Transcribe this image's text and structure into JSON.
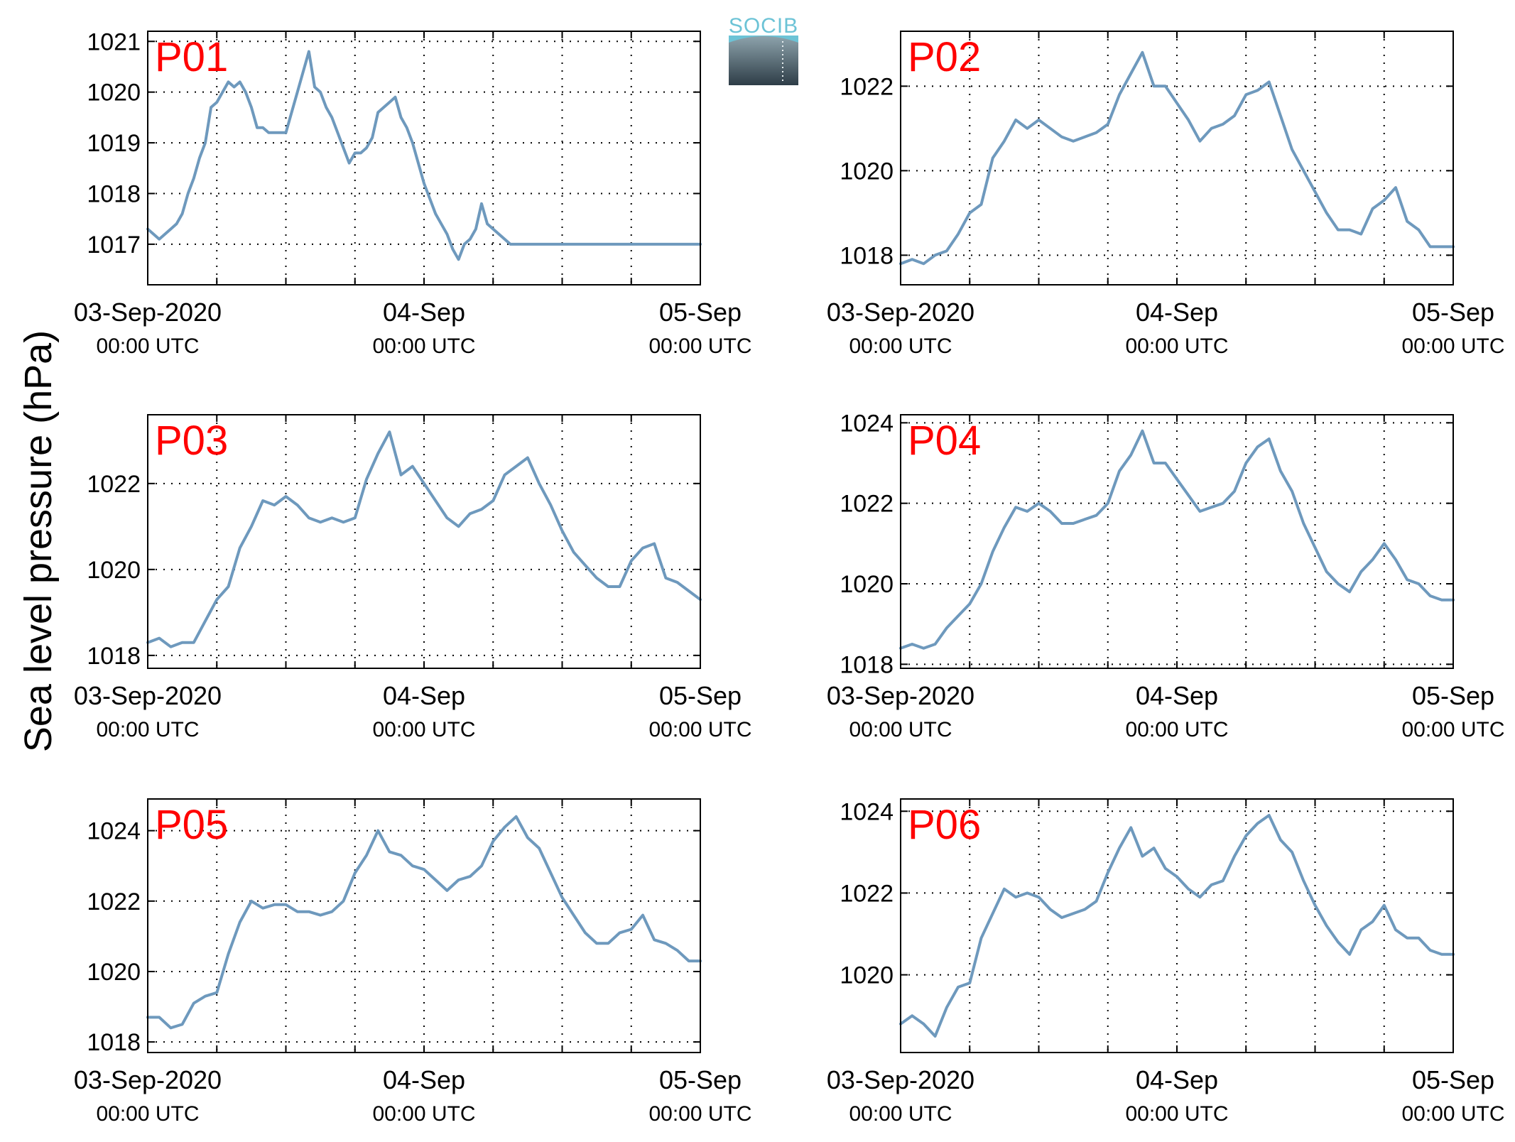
{
  "figure": {
    "ylabel": "Sea level pressure (hPa)",
    "logo_text": "SOCIB",
    "colors": {
      "line": "#6e99bd",
      "panel_label": "#ff0000",
      "frame": "#000000"
    }
  },
  "chart_data": [
    {
      "type": "line",
      "label": "P01",
      "grid": true,
      "ylim": [
        1016.2,
        1021.2
      ],
      "yticks": [
        1017,
        1018,
        1019,
        1020,
        1021
      ],
      "xlim": [
        0,
        48
      ],
      "xtick_labels": [
        {
          "x": 0,
          "date": "03-Sep-2020",
          "time": "00:00 UTC"
        },
        {
          "x": 24,
          "date": "04-Sep",
          "time": "00:00 UTC"
        },
        {
          "x": 48,
          "date": "05-Sep",
          "time": "00:00 UTC"
        }
      ],
      "x": [
        0,
        0.5,
        1,
        1.5,
        2,
        2.5,
        3,
        3.5,
        4,
        4.5,
        5,
        5.5,
        6,
        6.5,
        7,
        7.5,
        8,
        8.5,
        9,
        9.5,
        10,
        10.5,
        11,
        11.5,
        12,
        12.5,
        13,
        13.5,
        14,
        14.5,
        15,
        15.5,
        16,
        16.5,
        17,
        17.5,
        18,
        18.5,
        19,
        19.5,
        20,
        20.5,
        21,
        21.5,
        22,
        22.5,
        23,
        23.5,
        24,
        24.5,
        25,
        25.5,
        26,
        26.5,
        27,
        27.5,
        28,
        28.5,
        29,
        29.5,
        30,
        30.5,
        31,
        31.5,
        32,
        32.5,
        33,
        33.5,
        34,
        34.5,
        35,
        35.5,
        36,
        36.5,
        37,
        37.5,
        38,
        38.5,
        39,
        39.5,
        40,
        40.5,
        41,
        41.5,
        42,
        42.5,
        43,
        43.5,
        44,
        44.5,
        45,
        45.5,
        46,
        46.5,
        47,
        47.5,
        48
      ],
      "y": [
        1017.3,
        1017.2,
        1017.1,
        1017.2,
        1017.3,
        1017.4,
        1017.6,
        1018,
        1018.3,
        1018.7,
        1019,
        1019.7,
        1019.8,
        1020,
        1020.2,
        1020.1,
        1020.2,
        1020,
        1019.7,
        1019.3,
        1019.3,
        1019.2,
        1019.2,
        1019.2,
        1019.2,
        1019.6,
        1020,
        1020.4,
        1020.8,
        1020.1,
        1020,
        1019.7,
        1019.5,
        1019.2,
        1018.9,
        1018.6,
        1018.8,
        1018.8,
        1018.9,
        1019.1,
        1019.6,
        1019.7,
        1019.8,
        1019.9,
        1019.5,
        1019.3,
        1019,
        1018.6,
        1018.2,
        1017.9,
        1017.6,
        1017.4,
        1017.2,
        1016.9,
        1016.7,
        1017,
        1017.1,
        1017.3,
        1017.8,
        1017.4,
        1017.3,
        1017.2,
        1017.1,
        1017.0,
        1017.0,
        1017.0,
        1017.0,
        1017.0,
        1017.0,
        1017.0,
        1017.0,
        1017.0,
        1017.0,
        1017.0,
        1017.0,
        1017.0,
        1017.0,
        1017.0,
        1017.0,
        1017.0,
        1017.0,
        1017.0,
        1017.0,
        1017.0,
        1017.0,
        1017.0,
        1017.0,
        1017.0,
        1017.0,
        1017.0,
        1017.0,
        1017.0,
        1017.0,
        1017.0,
        1017.0,
        1017.0,
        1017.0
      ]
    },
    {
      "type": "line",
      "label": "P02",
      "grid": true,
      "ylim": [
        1017.3,
        1023.3
      ],
      "yticks": [
        1018,
        1020,
        1022
      ],
      "xlim": [
        0,
        48
      ],
      "xtick_labels": [
        {
          "x": 0,
          "date": "03-Sep-2020",
          "time": "00:00 UTC"
        },
        {
          "x": 24,
          "date": "04-Sep",
          "time": "00:00 UTC"
        },
        {
          "x": 48,
          "date": "05-Sep",
          "time": "00:00 UTC"
        }
      ],
      "x": [
        0,
        1,
        2,
        3,
        4,
        5,
        6,
        7,
        8,
        9,
        10,
        11,
        12,
        13,
        14,
        15,
        16,
        17,
        18,
        19,
        20,
        21,
        22,
        23,
        24,
        25,
        26,
        27,
        28,
        29,
        30,
        31,
        32,
        33,
        34,
        35,
        36,
        37,
        38,
        39,
        40,
        41,
        42,
        43,
        44,
        45,
        46,
        47,
        48
      ],
      "y": [
        1017.8,
        1017.9,
        1017.8,
        1018,
        1018.1,
        1018.5,
        1019,
        1019.2,
        1020.3,
        1020.7,
        1021.2,
        1021,
        1021.2,
        1021,
        1020.8,
        1020.7,
        1020.8,
        1020.9,
        1021.1,
        1021.8,
        1022.3,
        1022.8,
        1022,
        1022,
        1021.6,
        1021.2,
        1020.7,
        1021,
        1021.1,
        1021.3,
        1021.8,
        1021.9,
        1022.1,
        1021.3,
        1020.5,
        1020,
        1019.5,
        1019,
        1018.6,
        1018.6,
        1018.5,
        1019.1,
        1019.3,
        1019.6,
        1018.8,
        1018.6,
        1018.2,
        1018.2,
        1018.2
      ]
    },
    {
      "type": "line",
      "label": "P03",
      "grid": true,
      "ylim": [
        1017.7,
        1023.6
      ],
      "yticks": [
        1018,
        1020,
        1022
      ],
      "xlim": [
        0,
        48
      ],
      "xtick_labels": [
        {
          "x": 0,
          "date": "03-Sep-2020",
          "time": "00:00 UTC"
        },
        {
          "x": 24,
          "date": "04-Sep",
          "time": "00:00 UTC"
        },
        {
          "x": 48,
          "date": "05-Sep",
          "time": "00:00 UTC"
        }
      ],
      "x": [
        0,
        1,
        2,
        3,
        4,
        5,
        6,
        7,
        8,
        9,
        10,
        11,
        12,
        13,
        14,
        15,
        16,
        17,
        18,
        19,
        20,
        21,
        22,
        23,
        24,
        25,
        26,
        27,
        28,
        29,
        30,
        31,
        32,
        33,
        34,
        35,
        36,
        37,
        38,
        39,
        40,
        41,
        42,
        43,
        44,
        45,
        46,
        47,
        48
      ],
      "y": [
        1018.3,
        1018.4,
        1018.2,
        1018.3,
        1018.3,
        1018.8,
        1019.3,
        1019.6,
        1020.5,
        1021,
        1021.6,
        1021.5,
        1021.7,
        1021.5,
        1021.2,
        1021.1,
        1021.2,
        1021.1,
        1021.2,
        1022.1,
        1022.7,
        1023.2,
        1022.2,
        1022.4,
        1022,
        1021.6,
        1021.2,
        1021,
        1021.3,
        1021.4,
        1021.6,
        1022.2,
        1022.4,
        1022.6,
        1022,
        1021.5,
        1020.9,
        1020.4,
        1020.1,
        1019.8,
        1019.6,
        1019.6,
        1020.2,
        1020.5,
        1020.6,
        1019.8,
        1019.7,
        1019.5,
        1019.3
      ]
    },
    {
      "type": "line",
      "label": "P04",
      "grid": true,
      "ylim": [
        1017.9,
        1024.2
      ],
      "yticks": [
        1018,
        1020,
        1022,
        1024
      ],
      "xlim": [
        0,
        48
      ],
      "xtick_labels": [
        {
          "x": 0,
          "date": "03-Sep-2020",
          "time": "00:00 UTC"
        },
        {
          "x": 24,
          "date": "04-Sep",
          "time": "00:00 UTC"
        },
        {
          "x": 48,
          "date": "05-Sep",
          "time": "00:00 UTC"
        }
      ],
      "x": [
        0,
        1,
        2,
        3,
        4,
        5,
        6,
        7,
        8,
        9,
        10,
        11,
        12,
        13,
        14,
        15,
        16,
        17,
        18,
        19,
        20,
        21,
        22,
        23,
        24,
        25,
        26,
        27,
        28,
        29,
        30,
        31,
        32,
        33,
        34,
        35,
        36,
        37,
        38,
        39,
        40,
        41,
        42,
        43,
        44,
        45,
        46,
        47,
        48
      ],
      "y": [
        1018.4,
        1018.5,
        1018.4,
        1018.5,
        1018.9,
        1019.2,
        1019.5,
        1020,
        1020.8,
        1021.4,
        1021.9,
        1021.8,
        1022,
        1021.8,
        1021.5,
        1021.5,
        1021.6,
        1021.7,
        1022,
        1022.8,
        1023.2,
        1023.8,
        1023,
        1023,
        1022.6,
        1022.2,
        1021.8,
        1021.9,
        1022,
        1022.3,
        1023,
        1023.4,
        1023.6,
        1022.8,
        1022.3,
        1021.5,
        1020.9,
        1020.3,
        1020,
        1019.8,
        1020.3,
        1020.6,
        1021,
        1020.6,
        1020.1,
        1020,
        1019.7,
        1019.6,
        1019.6
      ]
    },
    {
      "type": "line",
      "label": "P05",
      "grid": true,
      "ylim": [
        1017.7,
        1024.9
      ],
      "yticks": [
        1018,
        1020,
        1022,
        1024
      ],
      "xlim": [
        0,
        48
      ],
      "xtick_labels": [
        {
          "x": 0,
          "date": "03-Sep-2020",
          "time": "00:00 UTC"
        },
        {
          "x": 24,
          "date": "04-Sep",
          "time": "00:00 UTC"
        },
        {
          "x": 48,
          "date": "05-Sep",
          "time": "00:00 UTC"
        }
      ],
      "x": [
        0,
        1,
        2,
        3,
        4,
        5,
        6,
        7,
        8,
        9,
        10,
        11,
        12,
        13,
        14,
        15,
        16,
        17,
        18,
        19,
        20,
        21,
        22,
        23,
        24,
        25,
        26,
        27,
        28,
        29,
        30,
        31,
        32,
        33,
        34,
        35,
        36,
        37,
        38,
        39,
        40,
        41,
        42,
        43,
        44,
        45,
        46,
        47,
        48
      ],
      "y": [
        1018.7,
        1018.7,
        1018.4,
        1018.5,
        1019.1,
        1019.3,
        1019.4,
        1020.5,
        1021.4,
        1022,
        1021.8,
        1021.9,
        1021.9,
        1021.7,
        1021.7,
        1021.6,
        1021.7,
        1022,
        1022.8,
        1023.3,
        1024,
        1023.4,
        1023.3,
        1023,
        1022.9,
        1022.6,
        1022.3,
        1022.6,
        1022.7,
        1023,
        1023.7,
        1024.1,
        1024.4,
        1023.8,
        1023.5,
        1022.8,
        1022.1,
        1021.6,
        1021.1,
        1020.8,
        1020.8,
        1021.1,
        1021.2,
        1021.6,
        1020.9,
        1020.8,
        1020.6,
        1020.3,
        1020.3
      ]
    },
    {
      "type": "line",
      "label": "P06",
      "grid": true,
      "ylim": [
        1018.1,
        1024.3
      ],
      "yticks": [
        1020,
        1022,
        1024
      ],
      "xlim": [
        0,
        48
      ],
      "xtick_labels": [
        {
          "x": 0,
          "date": "03-Sep-2020",
          "time": "00:00 UTC"
        },
        {
          "x": 24,
          "date": "04-Sep",
          "time": "00:00 UTC"
        },
        {
          "x": 48,
          "date": "05-Sep",
          "time": "00:00 UTC"
        }
      ],
      "x": [
        0,
        1,
        2,
        3,
        4,
        5,
        6,
        7,
        8,
        9,
        10,
        11,
        12,
        13,
        14,
        15,
        16,
        17,
        18,
        19,
        20,
        21,
        22,
        23,
        24,
        25,
        26,
        27,
        28,
        29,
        30,
        31,
        32,
        33,
        34,
        35,
        36,
        37,
        38,
        39,
        40,
        41,
        42,
        43,
        44,
        45,
        46,
        47,
        48
      ],
      "y": [
        1018.8,
        1019,
        1018.8,
        1018.5,
        1019.2,
        1019.7,
        1019.8,
        1020.9,
        1021.5,
        1022.1,
        1021.9,
        1022,
        1021.9,
        1021.6,
        1021.4,
        1021.5,
        1021.6,
        1021.8,
        1022.5,
        1023.1,
        1023.6,
        1022.9,
        1023.1,
        1022.6,
        1022.4,
        1022.1,
        1021.9,
        1022.2,
        1022.3,
        1022.9,
        1023.4,
        1023.7,
        1023.9,
        1023.3,
        1023,
        1022.3,
        1021.7,
        1021.2,
        1020.8,
        1020.5,
        1021.1,
        1021.3,
        1021.7,
        1021.1,
        1020.9,
        1020.9,
        1020.6,
        1020.5,
        1020.5
      ]
    }
  ]
}
